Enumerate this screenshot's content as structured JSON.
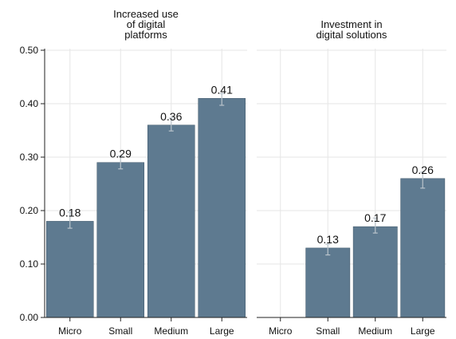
{
  "chart_data": {
    "type": "bar",
    "categories": [
      "Micro",
      "Small",
      "Medium",
      "Large"
    ],
    "ylim": [
      0,
      0.5
    ],
    "yticks": [
      "0.00",
      "0.10",
      "0.20",
      "0.30",
      "0.40",
      "0.50"
    ],
    "ytick_values": [
      0,
      0.1,
      0.2,
      0.3,
      0.4,
      0.5
    ],
    "bar_color": "#5e7a90",
    "grid": true,
    "panels": [
      {
        "title_lines": [
          "Increased use",
          "of digital",
          "platforms"
        ],
        "values": [
          0.18,
          0.29,
          0.36,
          0.41
        ],
        "labels": [
          "0.18",
          "0.29",
          "0.36",
          "0.41"
        ],
        "error_low": [
          0.167,
          0.278,
          0.349,
          0.397
        ],
        "error_high": [
          0.197,
          0.302,
          0.373,
          0.419
        ]
      },
      {
        "title_lines": [
          "Investment in",
          "digital solutions"
        ],
        "values": [
          null,
          0.13,
          0.17,
          0.26
        ],
        "labels": [
          "",
          "0.13",
          "0.17",
          "0.26"
        ],
        "error_low": [
          null,
          0.117,
          0.158,
          0.242
        ],
        "error_high": [
          null,
          0.137,
          0.186,
          0.272
        ]
      }
    ]
  }
}
